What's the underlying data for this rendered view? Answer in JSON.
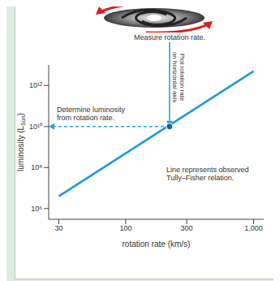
{
  "chart_data": {
    "type": "line",
    "log": true,
    "grid": false,
    "annotations": {
      "measure": "Measure rotation rate.",
      "plot": [
        "Plot rotation rate",
        "on horizontal axis"
      ],
      "determine": [
        "Determine luminosity",
        "from rotation rate."
      ],
      "relation": [
        "Line represents observed",
        "Tully–Fisher relation."
      ]
    },
    "x_label": "rotation rate (km/s)",
    "y_label": {
      "text": "luminosity (L",
      "sub": "Sun",
      "after": ")"
    },
    "x": [
      30,
      1000
    ],
    "values": [
      4000000,
      5000000000000
    ],
    "color": "#1e9ad6",
    "point": {
      "x": 220,
      "y": 10000000000
    },
    "xlim": [
      25,
      1200
    ],
    "xticks": [
      30,
      100,
      300,
      {
        "value": 1000,
        "label": "1,000"
      }
    ],
    "ylim": [
      300000,
      10000000000000
    ],
    "yticks": [
      {
        "value": 1000000,
        "label": "10⁶"
      },
      {
        "value": 100000000,
        "label": "10⁸"
      },
      {
        "value": 10000000000,
        "label": "10¹⁰"
      },
      {
        "value": 1000000000000,
        "label": "10¹²"
      }
    ]
  }
}
